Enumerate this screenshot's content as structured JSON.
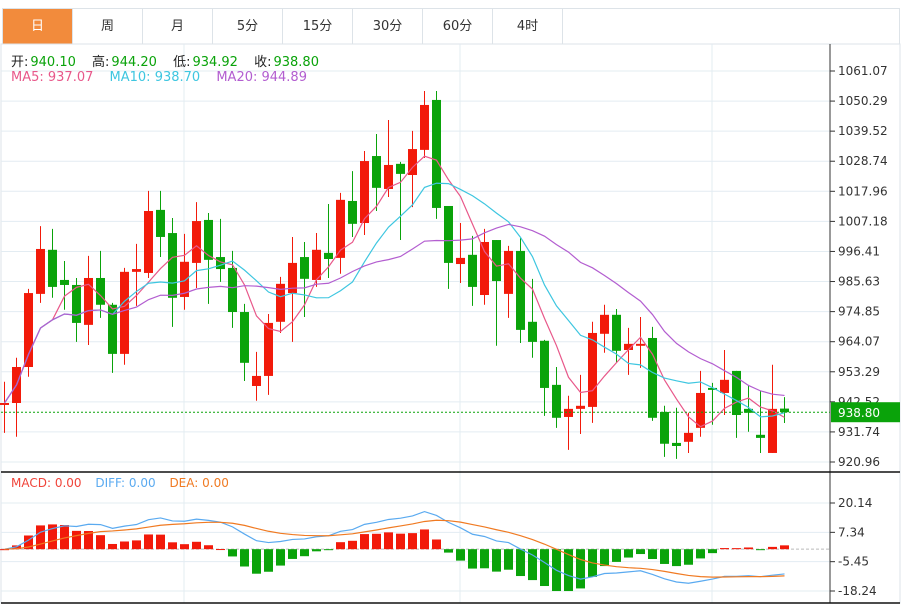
{
  "tabs": [
    {
      "label": "日",
      "active": true
    },
    {
      "label": "周"
    },
    {
      "label": "月"
    },
    {
      "label": "5分"
    },
    {
      "label": "15分"
    },
    {
      "label": "30分"
    },
    {
      "label": "60分"
    },
    {
      "label": "4时"
    }
  ],
  "ohlc": {
    "open_label": "开:",
    "open": "940.10",
    "high_label": "高:",
    "high": "944.20",
    "low_label": "低:",
    "low": "934.92",
    "close_label": "收:",
    "close": "938.80"
  },
  "ma": {
    "ma5": "MA5: 937.07",
    "ma10": "MA10: 938.70",
    "ma20": "MA20: 944.89"
  },
  "macd": {
    "macd": "MACD: 0.00",
    "diff": "DIFF: 0.00",
    "dea": "DEA: 0.00"
  },
  "colors": {
    "up": "#f21a0a",
    "down": "#0aa30a",
    "accent": "#f28b3c",
    "ma5": "#e8588a",
    "ma10": "#3ec6e0",
    "ma20": "#b35ed0",
    "diff": "#5aaaf0",
    "dea": "#f07a22"
  },
  "chart_data": {
    "type": "candlestick",
    "price_axis_ticks": [
      "1061.07",
      "1050.29",
      "1039.52",
      "1028.74",
      "1017.96",
      "1007.18",
      "996.41",
      "985.63",
      "974.85",
      "964.07",
      "953.29",
      "942.52",
      "931.74",
      "920.96"
    ],
    "price_ylim": [
      920.96,
      1061.07
    ],
    "current_price": "938.80",
    "macd_axis_ticks": [
      "20.14",
      "7.34",
      "-5.45",
      "-18.24"
    ],
    "macd_ylim": [
      -18.24,
      20.14
    ],
    "candles_ohlc": [
      [
        941.4,
        949.7,
        931.4,
        942.1
      ],
      [
        942.1,
        958.3,
        930.0,
        955.0
      ],
      [
        955.0,
        983.0,
        951.5,
        981.5
      ],
      [
        981.2,
        1005.5,
        978.0,
        997.3
      ],
      [
        997.0,
        1004.5,
        979.8,
        983.7
      ],
      [
        986.2,
        993.0,
        975.5,
        984.4
      ],
      [
        984.4,
        986.9,
        964.0,
        970.8
      ],
      [
        970.1,
        994.8,
        962.9,
        986.9
      ],
      [
        986.9,
        996.6,
        972.6,
        977.3
      ],
      [
        977.3,
        978.0,
        952.9,
        959.7
      ],
      [
        959.7,
        990.5,
        955.8,
        989.1
      ],
      [
        989.1,
        999.1,
        976.9,
        990.1
      ],
      [
        988.7,
        1018.1,
        986.9,
        1010.9
      ],
      [
        1011.3,
        1018.1,
        994.4,
        1001.6
      ],
      [
        1003.0,
        1008.4,
        969.4,
        979.8
      ],
      [
        980.1,
        1002.7,
        975.5,
        992.7
      ],
      [
        992.3,
        1014.1,
        983.3,
        1007.3
      ],
      [
        1007.7,
        1010.2,
        977.6,
        993.4
      ],
      [
        994.4,
        1008.1,
        985.5,
        990.1
      ],
      [
        990.5,
        996.6,
        969.0,
        974.7
      ],
      [
        974.7,
        977.6,
        950.0,
        956.5
      ],
      [
        948.2,
        960.4,
        942.9,
        951.8
      ],
      [
        951.8,
        974.0,
        945.0,
        970.8
      ],
      [
        971.2,
        987.3,
        967.2,
        984.8
      ],
      [
        981.5,
        1001.6,
        964.0,
        992.3
      ],
      [
        994.4,
        999.8,
        972.9,
        986.6
      ],
      [
        986.2,
        1003.0,
        983.7,
        997.0
      ],
      [
        995.9,
        1013.4,
        986.9,
        993.7
      ],
      [
        994.1,
        1017.4,
        988.4,
        1014.9
      ],
      [
        1014.5,
        1025.2,
        1001.6,
        1006.3
      ],
      [
        1006.6,
        1032.4,
        1002.3,
        1028.8
      ],
      [
        1030.6,
        1038.5,
        1010.9,
        1019.2
      ],
      [
        1018.8,
        1043.5,
        1015.9,
        1027.4
      ],
      [
        1027.8,
        1028.5,
        1000.5,
        1024.2
      ],
      [
        1023.8,
        1039.6,
        1012.3,
        1033.1
      ],
      [
        1032.8,
        1053.9,
        1029.9,
        1048.9
      ],
      [
        1050.7,
        1053.9,
        1008.1,
        1012.0
      ],
      [
        1012.7,
        1012.7,
        983.0,
        992.3
      ],
      [
        991.9,
        1006.6,
        985.1,
        994.1
      ],
      [
        995.2,
        1002.0,
        976.9,
        983.7
      ],
      [
        980.8,
        1004.5,
        977.3,
        999.8
      ],
      [
        1000.5,
        1000.5,
        962.6,
        985.8
      ],
      [
        981.2,
        998.4,
        972.6,
        996.6
      ],
      [
        996.6,
        1001.2,
        963.6,
        968.3
      ],
      [
        971.2,
        986.6,
        958.3,
        964.0
      ],
      [
        964.4,
        964.7,
        937.5,
        947.5
      ],
      [
        948.6,
        955.0,
        933.2,
        936.8
      ],
      [
        937.1,
        944.7,
        925.3,
        940.0
      ],
      [
        940.0,
        952.2,
        931.0,
        941.1
      ],
      [
        940.7,
        971.2,
        935.0,
        967.2
      ],
      [
        966.9,
        977.3,
        960.1,
        973.7
      ],
      [
        973.7,
        975.8,
        956.5,
        960.8
      ],
      [
        961.1,
        969.0,
        952.2,
        963.3
      ],
      [
        962.6,
        972.9,
        954.7,
        963.3
      ],
      [
        965.4,
        969.4,
        935.7,
        936.8
      ],
      [
        938.9,
        941.1,
        922.8,
        927.5
      ],
      [
        927.8,
        940.4,
        922.1,
        926.7
      ],
      [
        928.2,
        938.6,
        924.2,
        931.4
      ],
      [
        933.2,
        953.6,
        930.0,
        945.7
      ],
      [
        947.5,
        949.3,
        934.3,
        946.8
      ],
      [
        945.7,
        961.1,
        937.8,
        950.4
      ],
      [
        953.6,
        953.6,
        929.6,
        937.8
      ],
      [
        940.0,
        948.6,
        931.8,
        938.6
      ],
      [
        930.7,
        946.4,
        924.2,
        929.6
      ],
      [
        924.2,
        955.8,
        924.2,
        940.0
      ],
      [
        940.1,
        944.2,
        934.92,
        938.8
      ]
    ]
  }
}
